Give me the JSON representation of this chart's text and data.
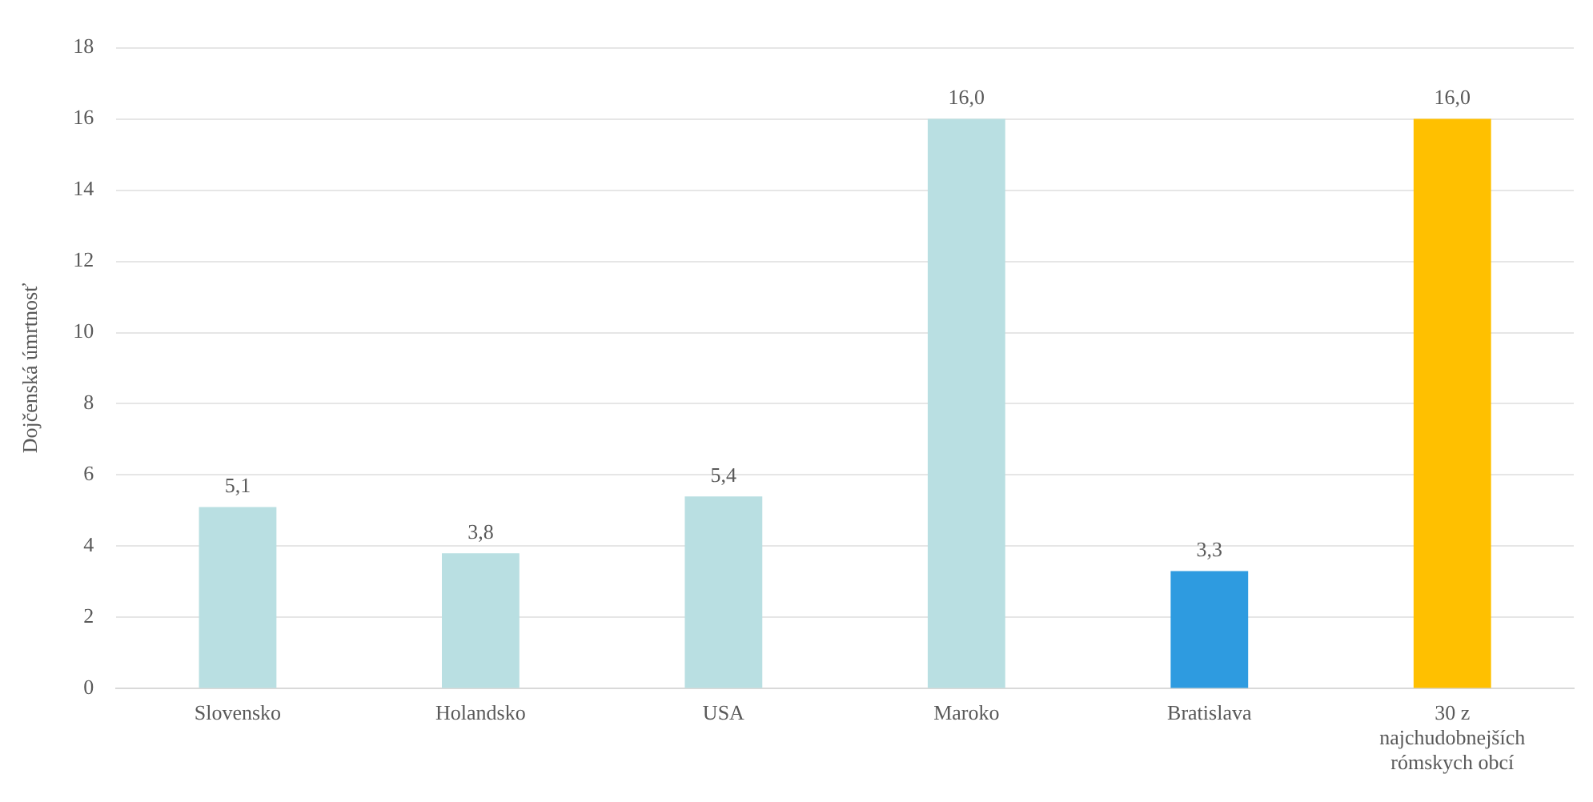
{
  "chart_data": {
    "type": "bar",
    "ylabel": "Dojčenská úmrtnosť",
    "categories": [
      "Slovensko",
      "Holandsko",
      "USA",
      "Maroko",
      "Bratislava",
      "30 z najchudobnejších rómskych obcí"
    ],
    "values": [
      5.1,
      3.8,
      5.4,
      16.0,
      3.3,
      16.0
    ],
    "colors": [
      "#b9dfe2",
      "#b9dfe2",
      "#b9dfe2",
      "#b9dfe2",
      "#2e9be0",
      "#ffc000"
    ],
    "value_labels": [
      "5,1",
      "3,8",
      "5,4",
      "16,0",
      "3,3",
      "16,0"
    ],
    "ylim": [
      0,
      18
    ],
    "yticks": [
      0,
      2,
      4,
      6,
      8,
      10,
      12,
      14,
      16,
      18
    ],
    "grid": "y",
    "legend": false
  }
}
